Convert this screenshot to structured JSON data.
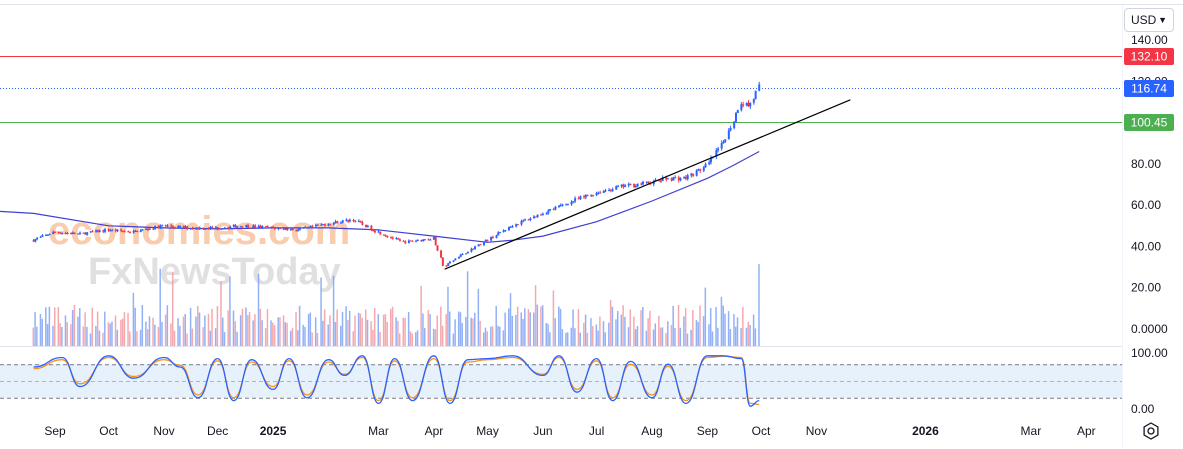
{
  "currency": {
    "value": "USD",
    "chevron_icon": "chevron-down-icon"
  },
  "settings_icon": "gear-icon",
  "watermark": {
    "line1": "economies.com",
    "line2": "FxNewsToday"
  },
  "price_levels": [
    {
      "value": "132.10",
      "color": "#f23645",
      "style": "solid"
    },
    {
      "value": "116.74",
      "color": "#2962ff",
      "style": "dotted"
    },
    {
      "value": "100.45",
      "color": "#4caf50",
      "style": "solid"
    }
  ],
  "price_axis_labels": [
    "140.00",
    "120.00",
    "100.00",
    "80.00",
    "60.00",
    "40.00",
    "20.00",
    "0.0000"
  ],
  "stoch_axis_labels": [
    "100.00",
    "0.00"
  ],
  "time_axis_labels": [
    {
      "text": "Sep",
      "bold": false
    },
    {
      "text": "Oct",
      "bold": false
    },
    {
      "text": "Nov",
      "bold": false
    },
    {
      "text": "Dec",
      "bold": false
    },
    {
      "text": "2025",
      "bold": true
    },
    {
      "text": "Mar",
      "bold": false
    },
    {
      "text": "Apr",
      "bold": false
    },
    {
      "text": "May",
      "bold": false
    },
    {
      "text": "Jun",
      "bold": false
    },
    {
      "text": "Jul",
      "bold": false
    },
    {
      "text": "Aug",
      "bold": false
    },
    {
      "text": "Sep",
      "bold": false
    },
    {
      "text": "Oct",
      "bold": false
    },
    {
      "text": "Nov",
      "bold": false
    },
    {
      "text": "2026",
      "bold": true
    },
    {
      "text": "Mar",
      "bold": false
    },
    {
      "text": "Apr",
      "bold": false
    }
  ],
  "chart_data": {
    "type": "candlestick",
    "grid": false,
    "colors": {
      "up": "#2962ff",
      "down": "#f23645",
      "moving_average": "#3f3fd6",
      "trendline": "#000000",
      "stoch_k": "#2962ff",
      "stoch_d": "#f7931a"
    },
    "price_range": [
      0,
      140
    ],
    "stoch_range": [
      0,
      100
    ],
    "stoch_band": [
      20,
      80
    ],
    "close_series": {
      "x": [
        "2024-08-20",
        "2024-09-01",
        "2024-09-15",
        "2024-10-01",
        "2024-10-15",
        "2024-11-01",
        "2024-11-15",
        "2024-12-01",
        "2024-12-15",
        "2025-01-01",
        "2025-01-15",
        "2025-02-01",
        "2025-02-15",
        "2025-03-01",
        "2025-03-15",
        "2025-04-01",
        "2025-04-07",
        "2025-04-15",
        "2025-05-01",
        "2025-05-15",
        "2025-06-01",
        "2025-06-15",
        "2025-07-01",
        "2025-07-15",
        "2025-08-01",
        "2025-08-10",
        "2025-08-20",
        "2025-09-01",
        "2025-09-10",
        "2025-09-15",
        "2025-09-20",
        "2025-09-25",
        "2025-09-30"
      ],
      "values": [
        43,
        47,
        46,
        48,
        47,
        50,
        49,
        49,
        50,
        49,
        48,
        51,
        53,
        47,
        42,
        44,
        30,
        35,
        43,
        50,
        56,
        61,
        66,
        69,
        71,
        73,
        73,
        79,
        90,
        99,
        110,
        108,
        117
      ]
    },
    "moving_average": {
      "x": [
        "2024-08-20",
        "2024-10-01",
        "2024-11-01",
        "2024-12-01",
        "2025-01-01",
        "2025-02-01",
        "2025-03-01",
        "2025-04-01",
        "2025-05-01",
        "2025-05-15",
        "2025-06-01",
        "2025-07-01",
        "2025-08-01",
        "2025-09-01",
        "2025-09-15",
        "2025-09-30"
      ],
      "values": [
        56,
        50,
        49,
        48.5,
        49,
        49,
        48,
        45,
        42,
        43,
        45,
        52,
        62,
        73,
        79,
        86
      ]
    },
    "trendline": {
      "start": [
        "2025-04-07",
        29
      ],
      "end": [
        "2025-11-20",
        111
      ]
    },
    "volume_scale_max": 35,
    "stochastic": {
      "x": [
        "2024-08-20",
        "2024-09-05",
        "2024-09-15",
        "2024-10-01",
        "2024-10-15",
        "2024-11-01",
        "2024-11-10",
        "2024-11-20",
        "2024-12-01",
        "2024-12-10",
        "2024-12-20",
        "2025-01-01",
        "2025-01-10",
        "2025-01-20",
        "2025-02-01",
        "2025-02-10",
        "2025-02-20",
        "2025-03-01",
        "2025-03-10",
        "2025-03-20",
        "2025-04-01",
        "2025-04-10",
        "2025-04-20",
        "2025-05-01",
        "2025-05-15",
        "2025-06-01",
        "2025-06-10",
        "2025-06-20",
        "2025-07-01",
        "2025-07-10",
        "2025-07-20",
        "2025-08-01",
        "2025-08-10",
        "2025-08-20",
        "2025-09-01",
        "2025-09-10",
        "2025-09-20",
        "2025-09-25",
        "2025-09-30"
      ],
      "k": [
        75,
        92,
        40,
        95,
        55,
        92,
        75,
        20,
        90,
        15,
        88,
        35,
        90,
        20,
        88,
        60,
        95,
        10,
        90,
        15,
        95,
        10,
        88,
        90,
        95,
        60,
        95,
        30,
        90,
        15,
        85,
        20,
        80,
        10,
        95,
        95,
        90,
        5,
        15
      ],
      "d": [
        72,
        88,
        45,
        92,
        58,
        88,
        78,
        25,
        86,
        20,
        84,
        40,
        86,
        25,
        84,
        62,
        92,
        15,
        86,
        20,
        90,
        15,
        84,
        88,
        92,
        62,
        92,
        35,
        86,
        20,
        80,
        25,
        76,
        15,
        92,
        94,
        92,
        10,
        8
      ]
    }
  }
}
